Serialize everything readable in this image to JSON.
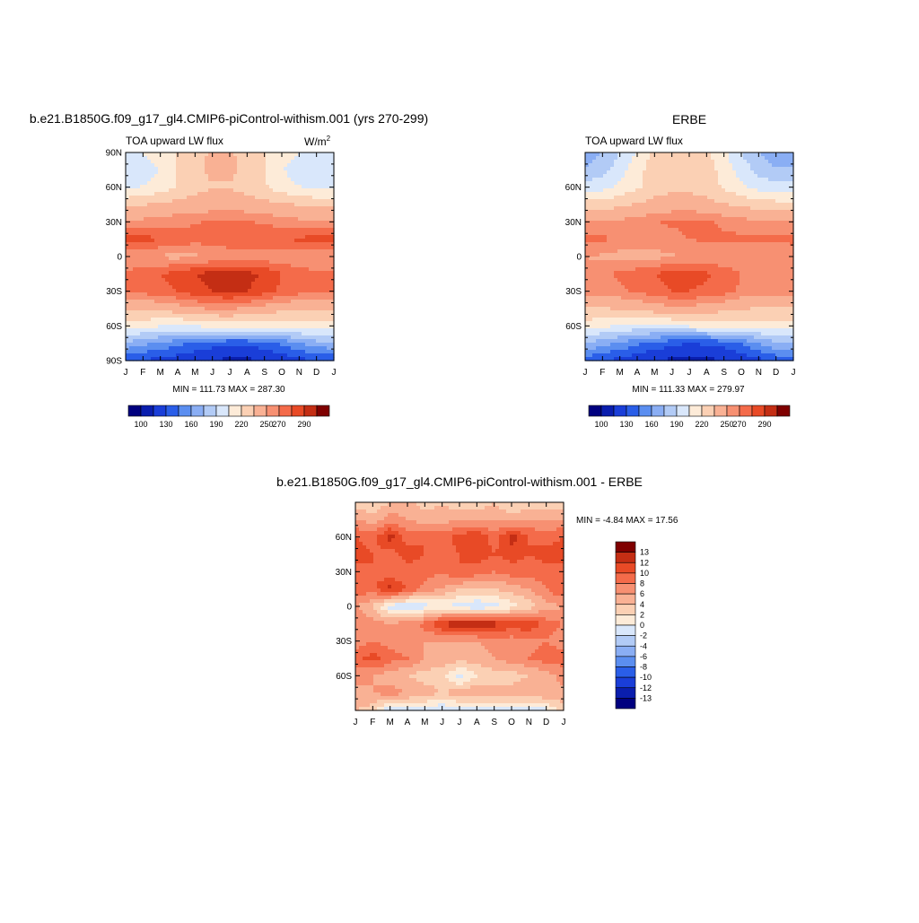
{
  "panels": [
    {
      "id": "model",
      "title": "b.e21.B1850G.f09_g17_gl4.CMIP6-piControl-withism.001 (yrs 270-299)",
      "left_label": "TOA upward LW flux",
      "units": "W/m",
      "units_sup": "2",
      "minmax": "MIN = 111.73 MAX = 287.30",
      "yticks": [
        "90N",
        "60N",
        "30N",
        "0",
        "30S",
        "60S",
        "90S"
      ],
      "xticks": [
        "J",
        "F",
        "M",
        "A",
        "M",
        "J",
        "J",
        "A",
        "S",
        "O",
        "N",
        "D",
        "J"
      ],
      "colorbar_labels": [
        "100",
        "130",
        "160",
        "190",
        "220",
        "250",
        "270",
        "290"
      ]
    },
    {
      "id": "obs",
      "title": "ERBE",
      "left_label": "TOA upward LW flux",
      "units": "",
      "units_sup": "",
      "minmax": "MIN = 111.33 MAX = 279.97",
      "yticks": [
        "60N",
        "30N",
        "0",
        "30S",
        "60S"
      ],
      "xticks": [
        "J",
        "F",
        "M",
        "A",
        "M",
        "J",
        "J",
        "A",
        "S",
        "O",
        "N",
        "D",
        "J"
      ],
      "colorbar_labels": [
        "100",
        "130",
        "160",
        "190",
        "220",
        "250",
        "270",
        "290"
      ]
    },
    {
      "id": "diff",
      "title": "b.e21.B1850G.f09_g17_gl4.CMIP6-piControl-withism.001 - ERBE",
      "left_label": "",
      "units": "",
      "units_sup": "",
      "minmax": "MIN =  -4.84 MAX =  17.56",
      "yticks": [
        "60N",
        "30N",
        "0",
        "30S",
        "60S"
      ],
      "xticks": [
        "J",
        "F",
        "M",
        "A",
        "M",
        "J",
        "J",
        "A",
        "S",
        "O",
        "N",
        "D",
        "J"
      ],
      "colorbar_labels": [
        "13",
        "12",
        "10",
        "8",
        "6",
        "4",
        "2",
        "0",
        "-2",
        "-4",
        "-6",
        "-8",
        "-10",
        "-12",
        "-13"
      ]
    }
  ],
  "chart_data": [
    {
      "type": "heatmap",
      "title": "b.e21.B1850G.f09_g17_gl4.CMIP6-piControl-withism.001 (yrs 270-299)",
      "variable": "TOA upward LW flux",
      "units": "W/m2",
      "x": [
        "J",
        "F",
        "M",
        "A",
        "M",
        "J",
        "J",
        "A",
        "S",
        "O",
        "N",
        "D",
        "J"
      ],
      "y": [
        90,
        75,
        60,
        45,
        30,
        15,
        0,
        -15,
        -30,
        -45,
        -60,
        -75,
        -90
      ],
      "xlim": [
        0,
        12
      ],
      "ylim": [
        -90,
        90
      ],
      "min": 111.73,
      "max": 287.3,
      "colorbar_levels": [
        100,
        115,
        130,
        145,
        160,
        175,
        190,
        205,
        220,
        235,
        250,
        260,
        270,
        280,
        290
      ],
      "colors": [
        "#00007f",
        "#0a1eae",
        "#1a3ed8",
        "#2a5ee8",
        "#5b8ef0",
        "#8aaef4",
        "#b2cbf6",
        "#d9e7fb",
        "#fdebd8",
        "#fbd0b4",
        "#f9b194",
        "#f79072",
        "#f46b4a",
        "#e84a26",
        "#c42e14",
        "#7f0000"
      ],
      "values": [
        [
          200,
          205,
          212,
          222,
          232,
          236,
          236,
          232,
          222,
          212,
          205,
          200,
          200
        ],
        [
          192,
          197,
          206,
          220,
          232,
          238,
          238,
          232,
          220,
          206,
          197,
          192,
          192
        ],
        [
          202,
          206,
          212,
          222,
          230,
          234,
          234,
          230,
          222,
          212,
          206,
          202,
          202
        ],
        [
          232,
          234,
          237,
          240,
          242,
          243,
          243,
          242,
          240,
          237,
          234,
          232,
          232
        ],
        [
          252,
          253,
          255,
          257,
          259,
          261,
          262,
          261,
          258,
          255,
          253,
          252,
          252
        ],
        [
          276,
          274,
          270,
          266,
          264,
          265,
          268,
          270,
          270,
          270,
          272,
          275,
          276
        ],
        [
          252,
          250,
          248,
          247,
          248,
          250,
          252,
          253,
          253,
          252,
          252,
          252,
          252
        ],
        [
          262,
          266,
          270,
          274,
          280,
          284,
          286,
          284,
          278,
          270,
          264,
          262,
          262
        ],
        [
          262,
          264,
          266,
          270,
          276,
          280,
          282,
          280,
          274,
          268,
          264,
          262,
          262
        ],
        [
          238,
          238,
          240,
          244,
          248,
          252,
          252,
          248,
          244,
          240,
          238,
          238,
          238
        ],
        [
          214,
          210,
          206,
          204,
          206,
          210,
          212,
          212,
          212,
          212,
          214,
          214,
          214
        ],
        [
          172,
          164,
          158,
          150,
          142,
          136,
          134,
          134,
          138,
          148,
          160,
          170,
          172
        ],
        [
          132,
          128,
          124,
          120,
          116,
          114,
          112,
          112,
          114,
          118,
          124,
          130,
          132
        ]
      ]
    },
    {
      "type": "heatmap",
      "title": "ERBE",
      "variable": "TOA upward LW flux",
      "x": [
        "J",
        "F",
        "M",
        "A",
        "M",
        "J",
        "J",
        "A",
        "S",
        "O",
        "N",
        "D",
        "J"
      ],
      "y": [
        90,
        75,
        60,
        45,
        30,
        15,
        0,
        -15,
        -30,
        -45,
        -60,
        -75,
        -90
      ],
      "xlim": [
        0,
        12
      ],
      "ylim": [
        -90,
        90
      ],
      "min": 111.33,
      "max": 279.97,
      "colorbar_levels": [
        100,
        115,
        130,
        145,
        160,
        175,
        190,
        205,
        220,
        235,
        250,
        260,
        270,
        280,
        290
      ],
      "colors": [
        "#00007f",
        "#0a1eae",
        "#1a3ed8",
        "#2a5ee8",
        "#5b8ef0",
        "#8aaef4",
        "#b2cbf6",
        "#d9e7fb",
        "#fdebd8",
        "#fbd0b4",
        "#f9b194",
        "#f79072",
        "#f46b4a",
        "#e84a26",
        "#c42e14",
        "#7f0000"
      ],
      "values": [
        [
          168,
          176,
          190,
          208,
          224,
          232,
          232,
          224,
          208,
          190,
          176,
          168,
          168
        ],
        [
          176,
          184,
          198,
          214,
          228,
          234,
          234,
          228,
          214,
          198,
          184,
          176,
          176
        ],
        [
          196,
          200,
          208,
          218,
          228,
          232,
          232,
          228,
          218,
          208,
          200,
          196,
          196
        ],
        [
          226,
          228,
          232,
          236,
          240,
          242,
          242,
          240,
          236,
          232,
          228,
          226,
          226
        ],
        [
          250,
          251,
          253,
          256,
          259,
          262,
          263,
          262,
          258,
          255,
          252,
          250,
          250
        ],
        [
          264,
          262,
          258,
          256,
          254,
          256,
          260,
          262,
          262,
          262,
          262,
          263,
          264
        ],
        [
          250,
          248,
          246,
          246,
          247,
          249,
          251,
          252,
          252,
          251,
          250,
          250,
          250
        ],
        [
          254,
          258,
          262,
          266,
          270,
          274,
          274,
          272,
          266,
          260,
          256,
          254,
          254
        ],
        [
          254,
          256,
          258,
          262,
          266,
          270,
          270,
          268,
          264,
          258,
          256,
          254,
          254
        ],
        [
          234,
          234,
          236,
          240,
          244,
          246,
          246,
          244,
          240,
          236,
          234,
          234,
          234
        ],
        [
          214,
          208,
          204,
          202,
          202,
          204,
          208,
          210,
          212,
          212,
          214,
          214,
          214
        ],
        [
          176,
          166,
          158,
          148,
          140,
          134,
          130,
          132,
          136,
          146,
          160,
          172,
          176
        ],
        [
          136,
          130,
          124,
          118,
          114,
          112,
          111,
          112,
          114,
          118,
          126,
          134,
          136
        ]
      ]
    },
    {
      "type": "heatmap",
      "title": "b.e21.B1850G.f09_g17_gl4.CMIP6-piControl-withism.001 - ERBE",
      "x": [
        "J",
        "F",
        "M",
        "A",
        "M",
        "J",
        "J",
        "A",
        "S",
        "O",
        "N",
        "D",
        "J"
      ],
      "y": [
        90,
        75,
        60,
        45,
        30,
        15,
        0,
        -15,
        -30,
        -45,
        -60,
        -75,
        -90
      ],
      "xlim": [
        0,
        12
      ],
      "ylim": [
        -90,
        90
      ],
      "min": -4.84,
      "max": 17.56,
      "colorbar_levels": [
        -13,
        -12,
        -10,
        -8,
        -6,
        -4,
        -2,
        0,
        2,
        4,
        6,
        8,
        10,
        12,
        13
      ],
      "colors": [
        "#00007f",
        "#0a1eae",
        "#1a3ed8",
        "#2a5ee8",
        "#5b8ef0",
        "#8aaef4",
        "#b2cbf6",
        "#d9e7fb",
        "#fdebd8",
        "#fbd0b4",
        "#f9b194",
        "#f79072",
        "#f46b4a",
        "#e84a26",
        "#c42e14",
        "#7f0000"
      ],
      "values": [
        [
          3,
          2,
          4,
          5,
          3,
          4,
          2,
          3,
          4,
          2,
          3,
          3,
          3
        ],
        [
          6,
          5,
          7,
          6,
          5,
          5,
          6,
          5,
          6,
          5,
          6,
          6,
          6
        ],
        [
          10,
          9,
          13,
          9,
          10,
          9,
          11,
          12,
          9,
          13,
          10,
          9,
          10
        ],
        [
          11,
          10,
          9,
          11,
          10,
          9,
          10,
          11,
          10,
          11,
          10,
          11,
          11
        ],
        [
          9,
          10,
          8,
          9,
          9,
          8,
          10,
          9,
          8,
          9,
          9,
          9,
          9
        ],
        [
          10,
          9,
          13,
          10,
          7,
          6,
          4,
          4,
          4,
          5,
          6,
          8,
          10
        ],
        [
          6,
          4,
          -1,
          -2,
          -1,
          0,
          -1,
          -2,
          -1,
          1,
          3,
          5,
          6
        ],
        [
          8,
          7,
          6,
          7,
          9,
          12,
          14,
          14,
          13,
          11,
          12,
          9,
          8
        ],
        [
          7,
          8,
          7,
          7,
          6,
          6,
          6,
          6,
          7,
          7,
          7,
          8,
          7
        ],
        [
          9,
          11,
          9,
          8,
          6,
          5,
          5,
          5,
          6,
          7,
          8,
          9,
          9
        ],
        [
          7,
          6,
          5,
          4,
          3,
          3,
          -1,
          2,
          3,
          3,
          4,
          5,
          7
        ],
        [
          5,
          6,
          7,
          6,
          5,
          4,
          5,
          6,
          5,
          5,
          6,
          6,
          5
        ],
        [
          4,
          3,
          -2,
          -1,
          -1,
          -2,
          -1,
          -2,
          -1,
          -1,
          -2,
          -1,
          4
        ]
      ]
    }
  ]
}
